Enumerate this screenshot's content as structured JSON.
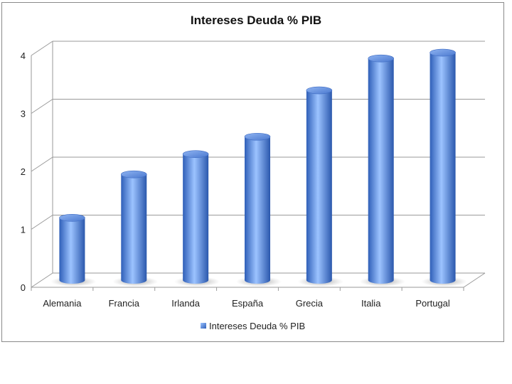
{
  "chart_data": {
    "type": "bar",
    "title": "Intereses Deuda % PIB",
    "categories": [
      "Alemania",
      "Francia",
      "Irlanda",
      "España",
      "Grecia",
      "Italia",
      "Portugal"
    ],
    "series": [
      {
        "name": "Intereses Deuda % PIB",
        "values": [
          1.1,
          1.85,
          2.2,
          2.5,
          3.3,
          3.85,
          3.95
        ],
        "color": "#4f7fd6"
      }
    ],
    "ylim": [
      0,
      4
    ],
    "yticks": [
      "0",
      "1",
      "2",
      "3",
      "4"
    ],
    "grid": true,
    "legend": "bottom",
    "style": "3d-cylinder"
  }
}
